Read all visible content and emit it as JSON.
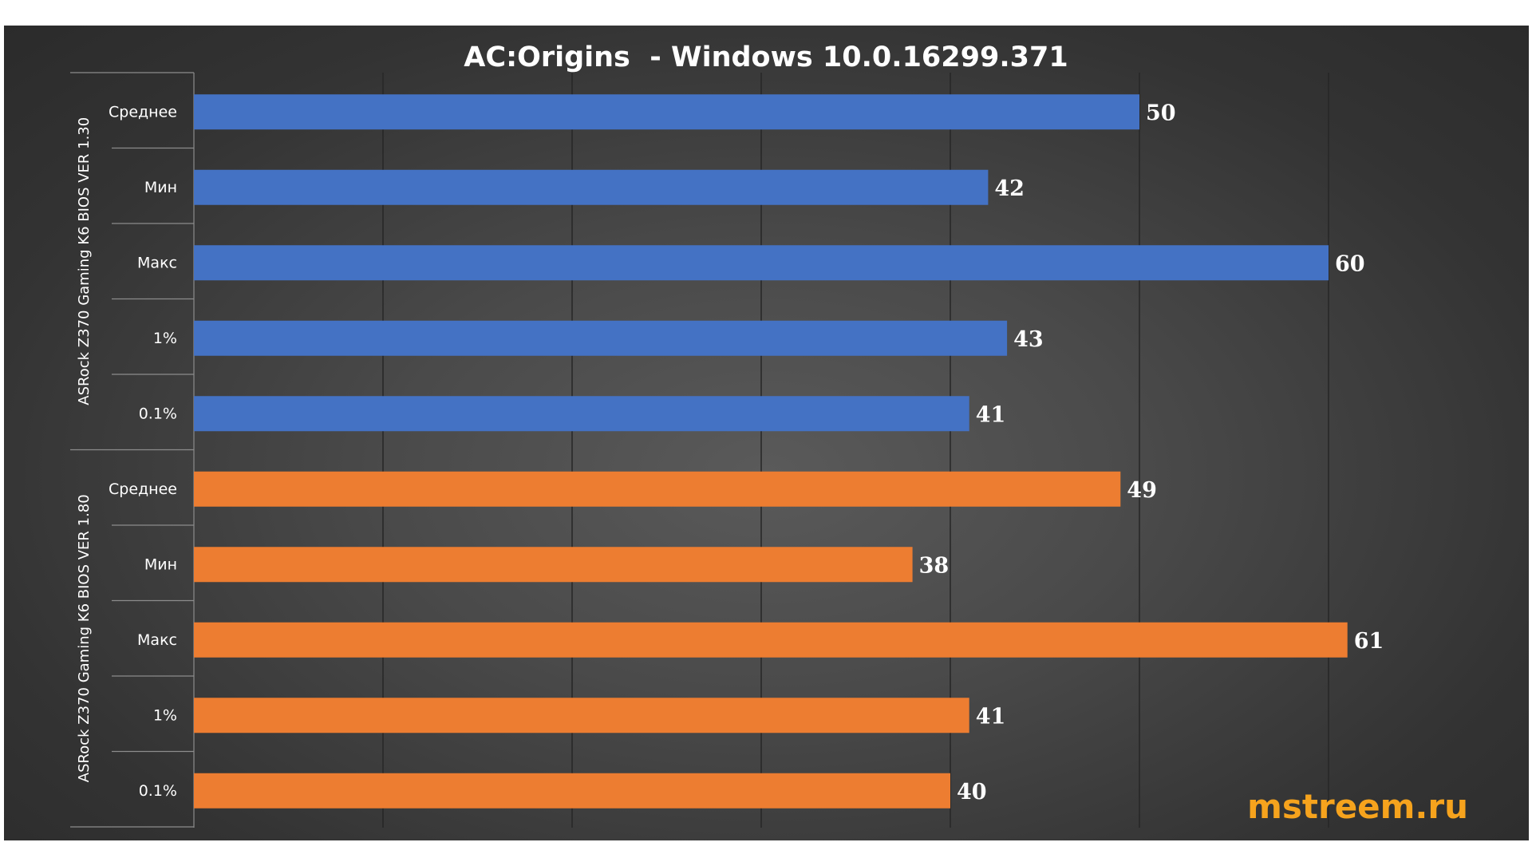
{
  "chart_data": {
    "type": "bar",
    "orientation": "horizontal",
    "title": "AC:Origins  - Windows 10.0.16299.371",
    "categories": [
      "Среднее",
      "Мин",
      "Макс",
      "1%",
      "0.1%"
    ],
    "series": [
      {
        "name": "ASRock Z370 Gaming K6 BIOS VER 1.30",
        "color": "#4472c4",
        "values": [
          50,
          42,
          60,
          43,
          41
        ]
      },
      {
        "name": "ASRock Z370 Gaming K6 BIOS VER 1.80",
        "color": "#ed7d31",
        "values": [
          49,
          38,
          61,
          41,
          40
        ]
      }
    ],
    "xlim": [
      0,
      60
    ],
    "grid": true,
    "legend": "none",
    "data_labels": true
  },
  "watermark": "mstreem.ru"
}
